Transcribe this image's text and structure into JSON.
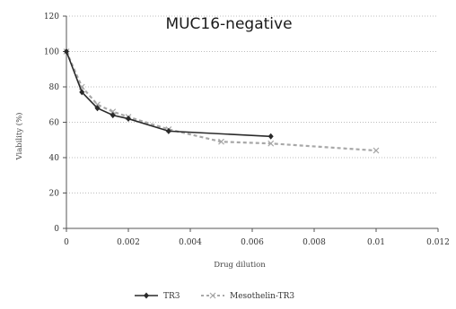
{
  "chart_data": {
    "type": "line",
    "title": "MUC16-negative",
    "xlabel": "Drug dilution",
    "ylabel": "Viability (%)",
    "xlim": [
      0,
      0.012
    ],
    "ylim": [
      0,
      120
    ],
    "x_ticks": [
      "0",
      "0.002",
      "0.004",
      "0.006",
      "0.008",
      "0.01",
      "0.012"
    ],
    "y_ticks": [
      "0",
      "20",
      "40",
      "60",
      "80",
      "100",
      "120"
    ],
    "grid": true,
    "legend_position": "bottom",
    "series": [
      {
        "name": "TR3",
        "color": "#2a2a2a",
        "style": "solid",
        "marker": "diamond",
        "x": [
          0,
          0.0005,
          0.001,
          0.0015,
          0.002,
          0.0033,
          0.0066
        ],
        "y": [
          100,
          77,
          68,
          64,
          62,
          55,
          52
        ]
      },
      {
        "name": "Mesothelin-TR3",
        "color": "#a8a8a8",
        "style": "dashed",
        "marker": "x",
        "x": [
          0,
          0.0005,
          0.001,
          0.0015,
          0.002,
          0.0033,
          0.005,
          0.0066,
          0.01
        ],
        "y": [
          100,
          80,
          70,
          66,
          63,
          56,
          49,
          48,
          44
        ]
      }
    ]
  }
}
